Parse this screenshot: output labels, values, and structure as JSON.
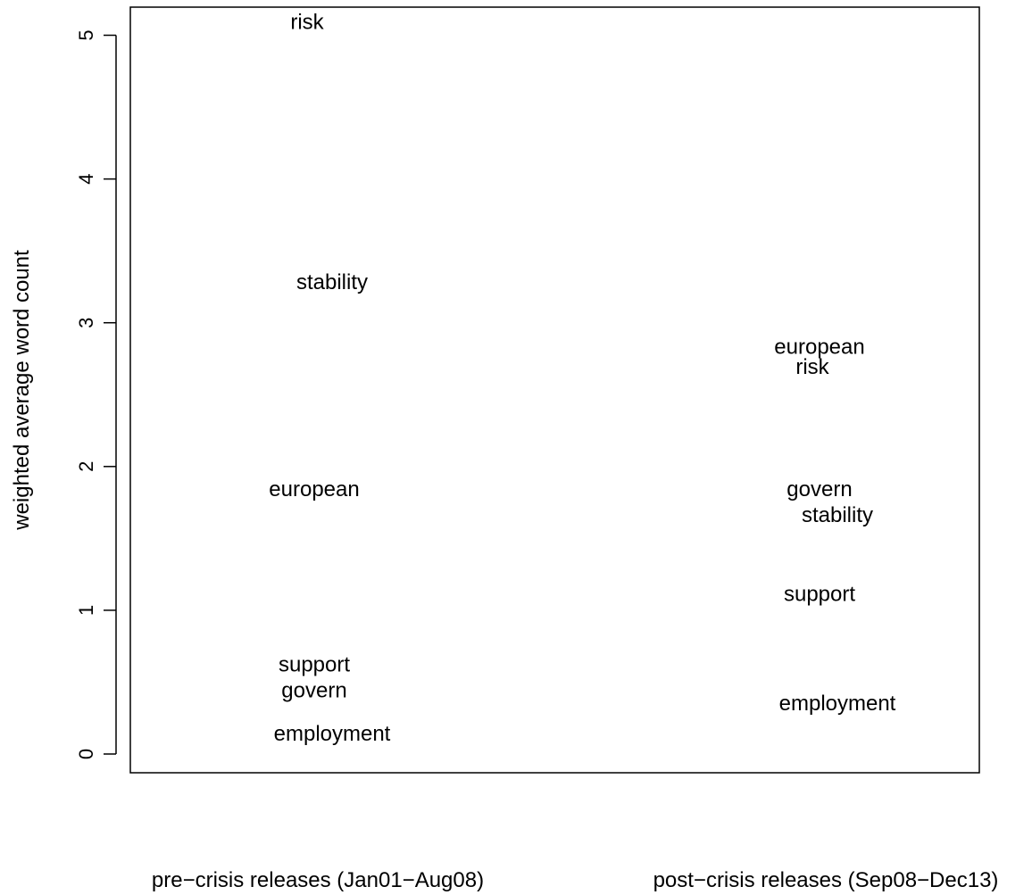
{
  "chart_data": {
    "type": "scatter",
    "ylabel": "weighted average word count",
    "ylim": [
      0,
      5
    ],
    "yticks": [
      0,
      1,
      2,
      3,
      4,
      5
    ],
    "groups": [
      "pre−crisis releases (Jan01−Aug08)",
      "post−crisis releases (Sep08−Dec13)"
    ],
    "points": [
      {
        "group": 0,
        "label": "risk",
        "y": 5.09
      },
      {
        "group": 0,
        "label": "stability",
        "y": 3.28
      },
      {
        "group": 0,
        "label": "european",
        "y": 1.84
      },
      {
        "group": 0,
        "label": "support",
        "y": 0.62
      },
      {
        "group": 0,
        "label": "govern",
        "y": 0.44
      },
      {
        "group": 0,
        "label": "employment",
        "y": 0.14
      },
      {
        "group": 1,
        "label": "european",
        "y": 2.83
      },
      {
        "group": 1,
        "label": "risk",
        "y": 2.69
      },
      {
        "group": 1,
        "label": "govern",
        "y": 1.84
      },
      {
        "group": 1,
        "label": "stability",
        "y": 1.66
      },
      {
        "group": 1,
        "label": "support",
        "y": 1.11
      },
      {
        "group": 1,
        "label": "employment",
        "y": 0.35
      }
    ],
    "grid": false,
    "legend": "none"
  }
}
